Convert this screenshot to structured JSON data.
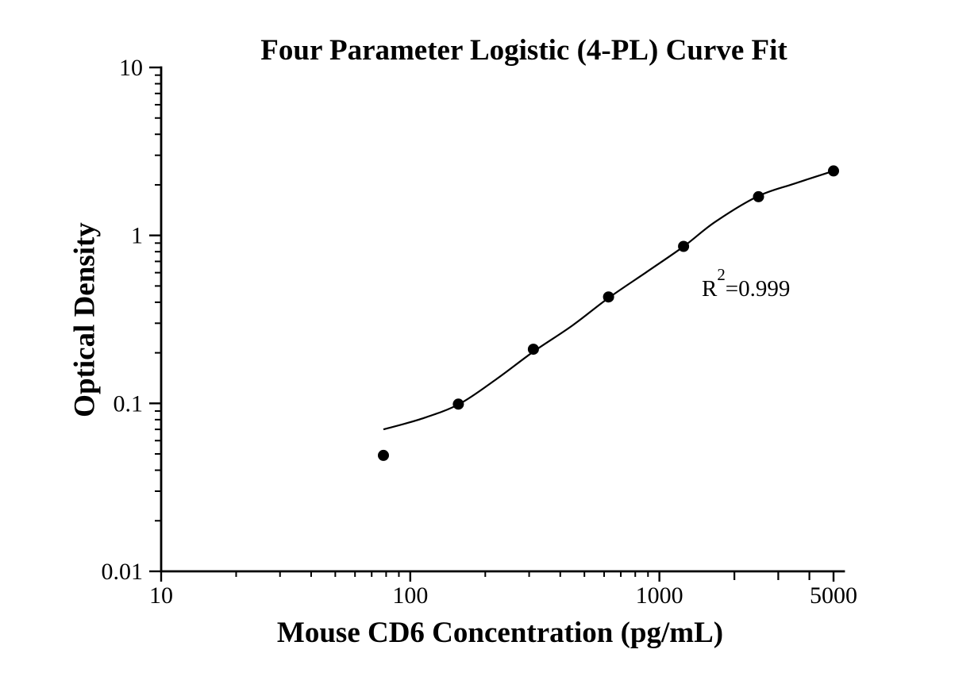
{
  "chart_data": {
    "type": "scatter",
    "title": "Four Parameter Logistic (4-PL) Curve Fit",
    "xlabel": "Mouse CD6 Concentration (pg/mL)",
    "ylabel": "Optical Density",
    "x_scale": "log",
    "y_scale": "log",
    "xlim": [
      10,
      5500
    ],
    "ylim": [
      0.01,
      10
    ],
    "grid": false,
    "legend": "none",
    "x_major_ticks": [
      {
        "value": 10,
        "label": "10"
      },
      {
        "value": 100,
        "label": "100"
      },
      {
        "value": 1000,
        "label": "1000"
      },
      {
        "value": 5000,
        "label": "5000"
      }
    ],
    "x_medium_ticks": [
      2000,
      3000,
      4000
    ],
    "x_minor_ticks": [
      20,
      30,
      40,
      50,
      60,
      70,
      80,
      90,
      200,
      300,
      400,
      500,
      600,
      700,
      800,
      900
    ],
    "y_major_ticks": [
      {
        "value": 10,
        "label": "10"
      },
      {
        "value": 1,
        "label": "1"
      },
      {
        "value": 0.1,
        "label": "0.1"
      },
      {
        "value": 0.01,
        "label": "0.01"
      }
    ],
    "y_minor_ticks": [
      0.02,
      0.03,
      0.04,
      0.05,
      0.06,
      0.07,
      0.08,
      0.09,
      0.2,
      0.3,
      0.4,
      0.5,
      0.6,
      0.7,
      0.8,
      0.9,
      2,
      3,
      4,
      5,
      6,
      7,
      8,
      9
    ],
    "series": [
      {
        "name": "standard-data-points",
        "role": "scatter",
        "points": [
          [
            78,
            0.049
          ],
          [
            156,
            0.099
          ],
          [
            312,
            0.21
          ],
          [
            625,
            0.43
          ],
          [
            1250,
            0.86
          ],
          [
            2500,
            1.7
          ],
          [
            5000,
            2.42
          ]
        ]
      },
      {
        "name": "4pl-fit-curve",
        "role": "line",
        "points": [
          [
            78,
            0.07
          ],
          [
            111,
            0.081
          ],
          [
            157,
            0.099
          ],
          [
            221,
            0.139
          ],
          [
            312,
            0.203
          ],
          [
            448,
            0.291
          ],
          [
            622,
            0.422
          ],
          [
            879,
            0.599
          ],
          [
            1250,
            0.858
          ],
          [
            1675,
            1.204
          ],
          [
            2480,
            1.707
          ],
          [
            3483,
            2.033
          ],
          [
            5000,
            2.42
          ]
        ]
      }
    ],
    "annotation": {
      "text": "R²=0.999",
      "prefix": "R",
      "superscript": "2",
      "suffix": "=0.999"
    },
    "colors": {
      "background": "#ffffff",
      "axis": "#000000",
      "text": "#000000",
      "curve": "#000000",
      "marker": "#000000"
    }
  }
}
